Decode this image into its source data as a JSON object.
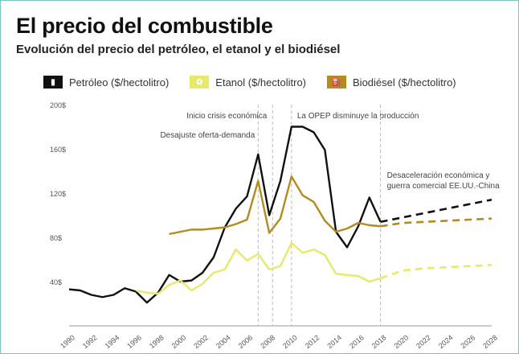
{
  "header": {
    "title": "El precio del combustible",
    "subtitle": "Evolución del precio del petróleo, el etanol y el biodiésel"
  },
  "legend": [
    {
      "label": "Petróleo ($/hectolitro)",
      "color": "#111111",
      "icon": "oil-barrel-icon",
      "icon_fg": "#ffffff"
    },
    {
      "label": "Etanol ($/hectolitro)",
      "color": "#e8e86a",
      "icon": "ethanol-icon",
      "icon_fg": "#ffffff"
    },
    {
      "label": "Biodiésel ($/hectolitro)",
      "color": "#b38b1e",
      "icon": "fuel-pump-icon",
      "icon_fg": "#ffffff"
    }
  ],
  "chart_data": {
    "type": "line",
    "title": "El precio del combustible",
    "subtitle": "Evolución del precio del petróleo, el etanol y el biodiésel",
    "ylim": [
      0,
      200
    ],
    "xlim": [
      1990,
      2028
    ],
    "yticks": [
      40,
      80,
      120,
      160,
      200
    ],
    "ytick_labels": [
      "40$",
      "80$",
      "120$",
      "160$",
      "200$"
    ],
    "xticks": [
      1990,
      1992,
      1994,
      1996,
      1998,
      2000,
      2002,
      2004,
      2006,
      2008,
      2010,
      2012,
      2014,
      2016,
      2018,
      2020,
      2022,
      2024,
      2026,
      2028
    ],
    "legend_position": "top",
    "grid": false,
    "series": [
      {
        "name": "Petróleo ($/hectolitro)",
        "color": "#111111",
        "x": [
          1990,
          1991,
          1992,
          1993,
          1994,
          1995,
          1996,
          1997,
          1998,
          1999,
          2000,
          2001,
          2002,
          2003,
          2004,
          2005,
          2006,
          2007,
          2008,
          2009,
          2010,
          2011,
          2012,
          2013,
          2014,
          2015,
          2016,
          2017,
          2018
        ],
        "values": [
          33,
          32,
          28,
          26,
          28,
          34,
          31,
          21,
          30,
          46,
          40,
          41,
          48,
          62,
          89,
          106,
          117,
          155,
          100,
          131,
          180,
          180,
          175,
          159,
          85,
          71,
          90,
          116,
          94
        ]
      },
      {
        "name": "Petróleo ($/hectolitro)",
        "color": "#111111",
        "dashed": true,
        "x": [
          2018,
          2028
        ],
        "values": [
          94,
          114
        ]
      },
      {
        "name": "Etanol ($/hectolitro)",
        "color": "#e8e86a",
        "x": [
          1996,
          1997,
          1998,
          1999,
          2000,
          2001,
          2002,
          2003,
          2004,
          2005,
          2006,
          2007,
          2008,
          2009,
          2010,
          2011,
          2012,
          2013,
          2014,
          2015,
          2016,
          2017,
          2018
        ],
        "values": [
          32,
          30,
          29,
          37,
          41,
          32,
          38,
          48,
          51,
          69,
          59,
          65,
          51,
          54,
          75,
          66,
          69,
          64,
          47,
          46,
          45,
          40,
          43
        ]
      },
      {
        "name": "Etanol ($/hectolitro)",
        "color": "#e8e86a",
        "dashed": true,
        "x": [
          2018,
          2020,
          2022,
          2024,
          2026,
          2028
        ],
        "values": [
          43,
          50,
          52,
          53,
          54,
          55
        ]
      },
      {
        "name": "Biodiésel ($/hectolitro)",
        "color": "#b38b1e",
        "x": [
          1999,
          2000,
          2001,
          2002,
          2003,
          2004,
          2005,
          2006,
          2007,
          2008,
          2009,
          2010,
          2011,
          2012,
          2013,
          2014,
          2015,
          2016,
          2017,
          2018
        ],
        "values": [
          83,
          85,
          87,
          87,
          88,
          89,
          92,
          96,
          131,
          84,
          97,
          135,
          118,
          112,
          95,
          85,
          88,
          93,
          91,
          90
        ]
      },
      {
        "name": "Biodiésel ($/hectolitro)",
        "color": "#b38b1e",
        "dashed": true,
        "x": [
          2018,
          2020,
          2022,
          2024,
          2026,
          2028
        ],
        "values": [
          90,
          93,
          94,
          95,
          96,
          97
        ]
      }
    ],
    "annotations": [
      {
        "x": 2007,
        "text": "Desajuste oferta-demanda"
      },
      {
        "x": 2008.3,
        "text": "Inicio crisis económica"
      },
      {
        "x": 2010,
        "text": "La OPEP disminuye la producción"
      },
      {
        "x": 2018,
        "text": "Desaceleración económica y",
        "text2": "guerra comercial EE.UU.-China"
      }
    ]
  }
}
